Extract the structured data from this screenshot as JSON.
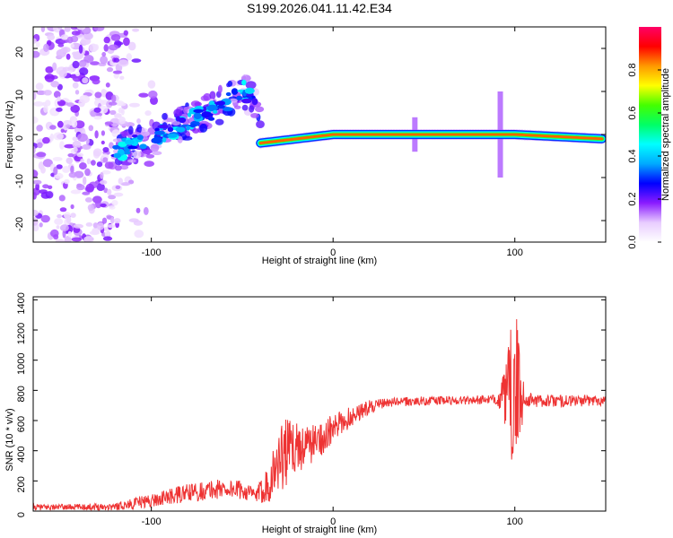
{
  "page_title": "S199.2026.041.11.42.E34",
  "chart_data": [
    {
      "type": "heatmap",
      "name": "spectrogram",
      "xlabel": "Height of straight line (km)",
      "ylabel": "Frequency (Hz)",
      "xlim": [
        -165,
        150
      ],
      "ylim": [
        -25,
        25
      ],
      "x_ticks": [
        -100,
        0,
        100
      ],
      "x_tick_labels": [
        "-100",
        "0",
        "100"
      ],
      "y_ticks": [
        -20,
        -10,
        0,
        10,
        20
      ],
      "y_tick_labels": [
        "-20",
        "-10",
        "0",
        "10",
        "20"
      ],
      "colorbar": {
        "label": "Normalized spectral amplitude",
        "range": [
          0,
          1
        ],
        "ticks": [
          0.0,
          0.2,
          0.4,
          0.6,
          0.8
        ],
        "tick_labels": [
          "0.0",
          "0.2",
          "0.4",
          "0.6",
          "0.8"
        ],
        "colors": [
          "#ffffff",
          "#e8ccff",
          "#8a1bff",
          "#0000ff",
          "#00aaff",
          "#00ffff",
          "#00ff66",
          "#44ff00",
          "#ffff00",
          "#ff9900",
          "#ff0000",
          "#ff0066"
        ]
      },
      "features": [
        {
          "name": "noise-region",
          "x_range": [
            -165,
            -115
          ],
          "freq_range": [
            -25,
            25
          ],
          "amplitude": 0.1
        },
        {
          "name": "rising-chirp",
          "x_points": [
            -120,
            -100,
            -80,
            -60,
            -50,
            -40
          ],
          "freq_points": [
            -4,
            -1,
            3,
            7,
            11,
            5
          ],
          "amplitude": 0.45
        },
        {
          "name": "steady-tone",
          "x_range": [
            -40,
            148
          ],
          "freq_points": [
            [
              -40,
              -2
            ],
            [
              -20,
              -1
            ],
            [
              0,
              0
            ],
            [
              50,
              0
            ],
            [
              100,
              0
            ],
            [
              148,
              -1
            ]
          ],
          "amplitude": 0.95
        }
      ]
    },
    {
      "type": "line",
      "name": "snr",
      "xlabel": "Height of straight line (km)",
      "ylabel": "SNR (10 * v/v)",
      "xlim": [
        -165,
        150
      ],
      "ylim": [
        0,
        1420
      ],
      "x_ticks": [
        -100,
        0,
        100
      ],
      "x_tick_labels": [
        "-100",
        "0",
        "100"
      ],
      "y_ticks": [
        0,
        200,
        400,
        600,
        800,
        1000,
        1200,
        1400
      ],
      "y_tick_labels": [
        "0",
        "200",
        "400",
        "600",
        "800",
        "1000",
        "1200",
        "1400"
      ],
      "color": "#ee3333",
      "series": [
        {
          "name": "SNR",
          "envelope_x": [
            -165,
            -140,
            -120,
            -100,
            -80,
            -60,
            -50,
            -42,
            -35,
            -28,
            -22,
            -15,
            -8,
            0,
            10,
            20,
            30,
            50,
            70,
            90,
            95,
            98,
            100,
            102,
            106,
            115,
            130,
            150
          ],
          "envelope_y": [
            25,
            28,
            30,
            70,
            120,
            150,
            140,
            100,
            200,
            380,
            420,
            430,
            470,
            540,
            630,
            690,
            720,
            730,
            735,
            740,
            760,
            780,
            790,
            770,
            740,
            730,
            730,
            735
          ],
          "noise_amplitude": [
            20,
            20,
            25,
            45,
            60,
            70,
            60,
            50,
            140,
            250,
            180,
            140,
            120,
            100,
            70,
            45,
            30,
            30,
            30,
            30,
            200,
            450,
            700,
            380,
            50,
            40,
            40,
            35
          ]
        }
      ]
    }
  ]
}
